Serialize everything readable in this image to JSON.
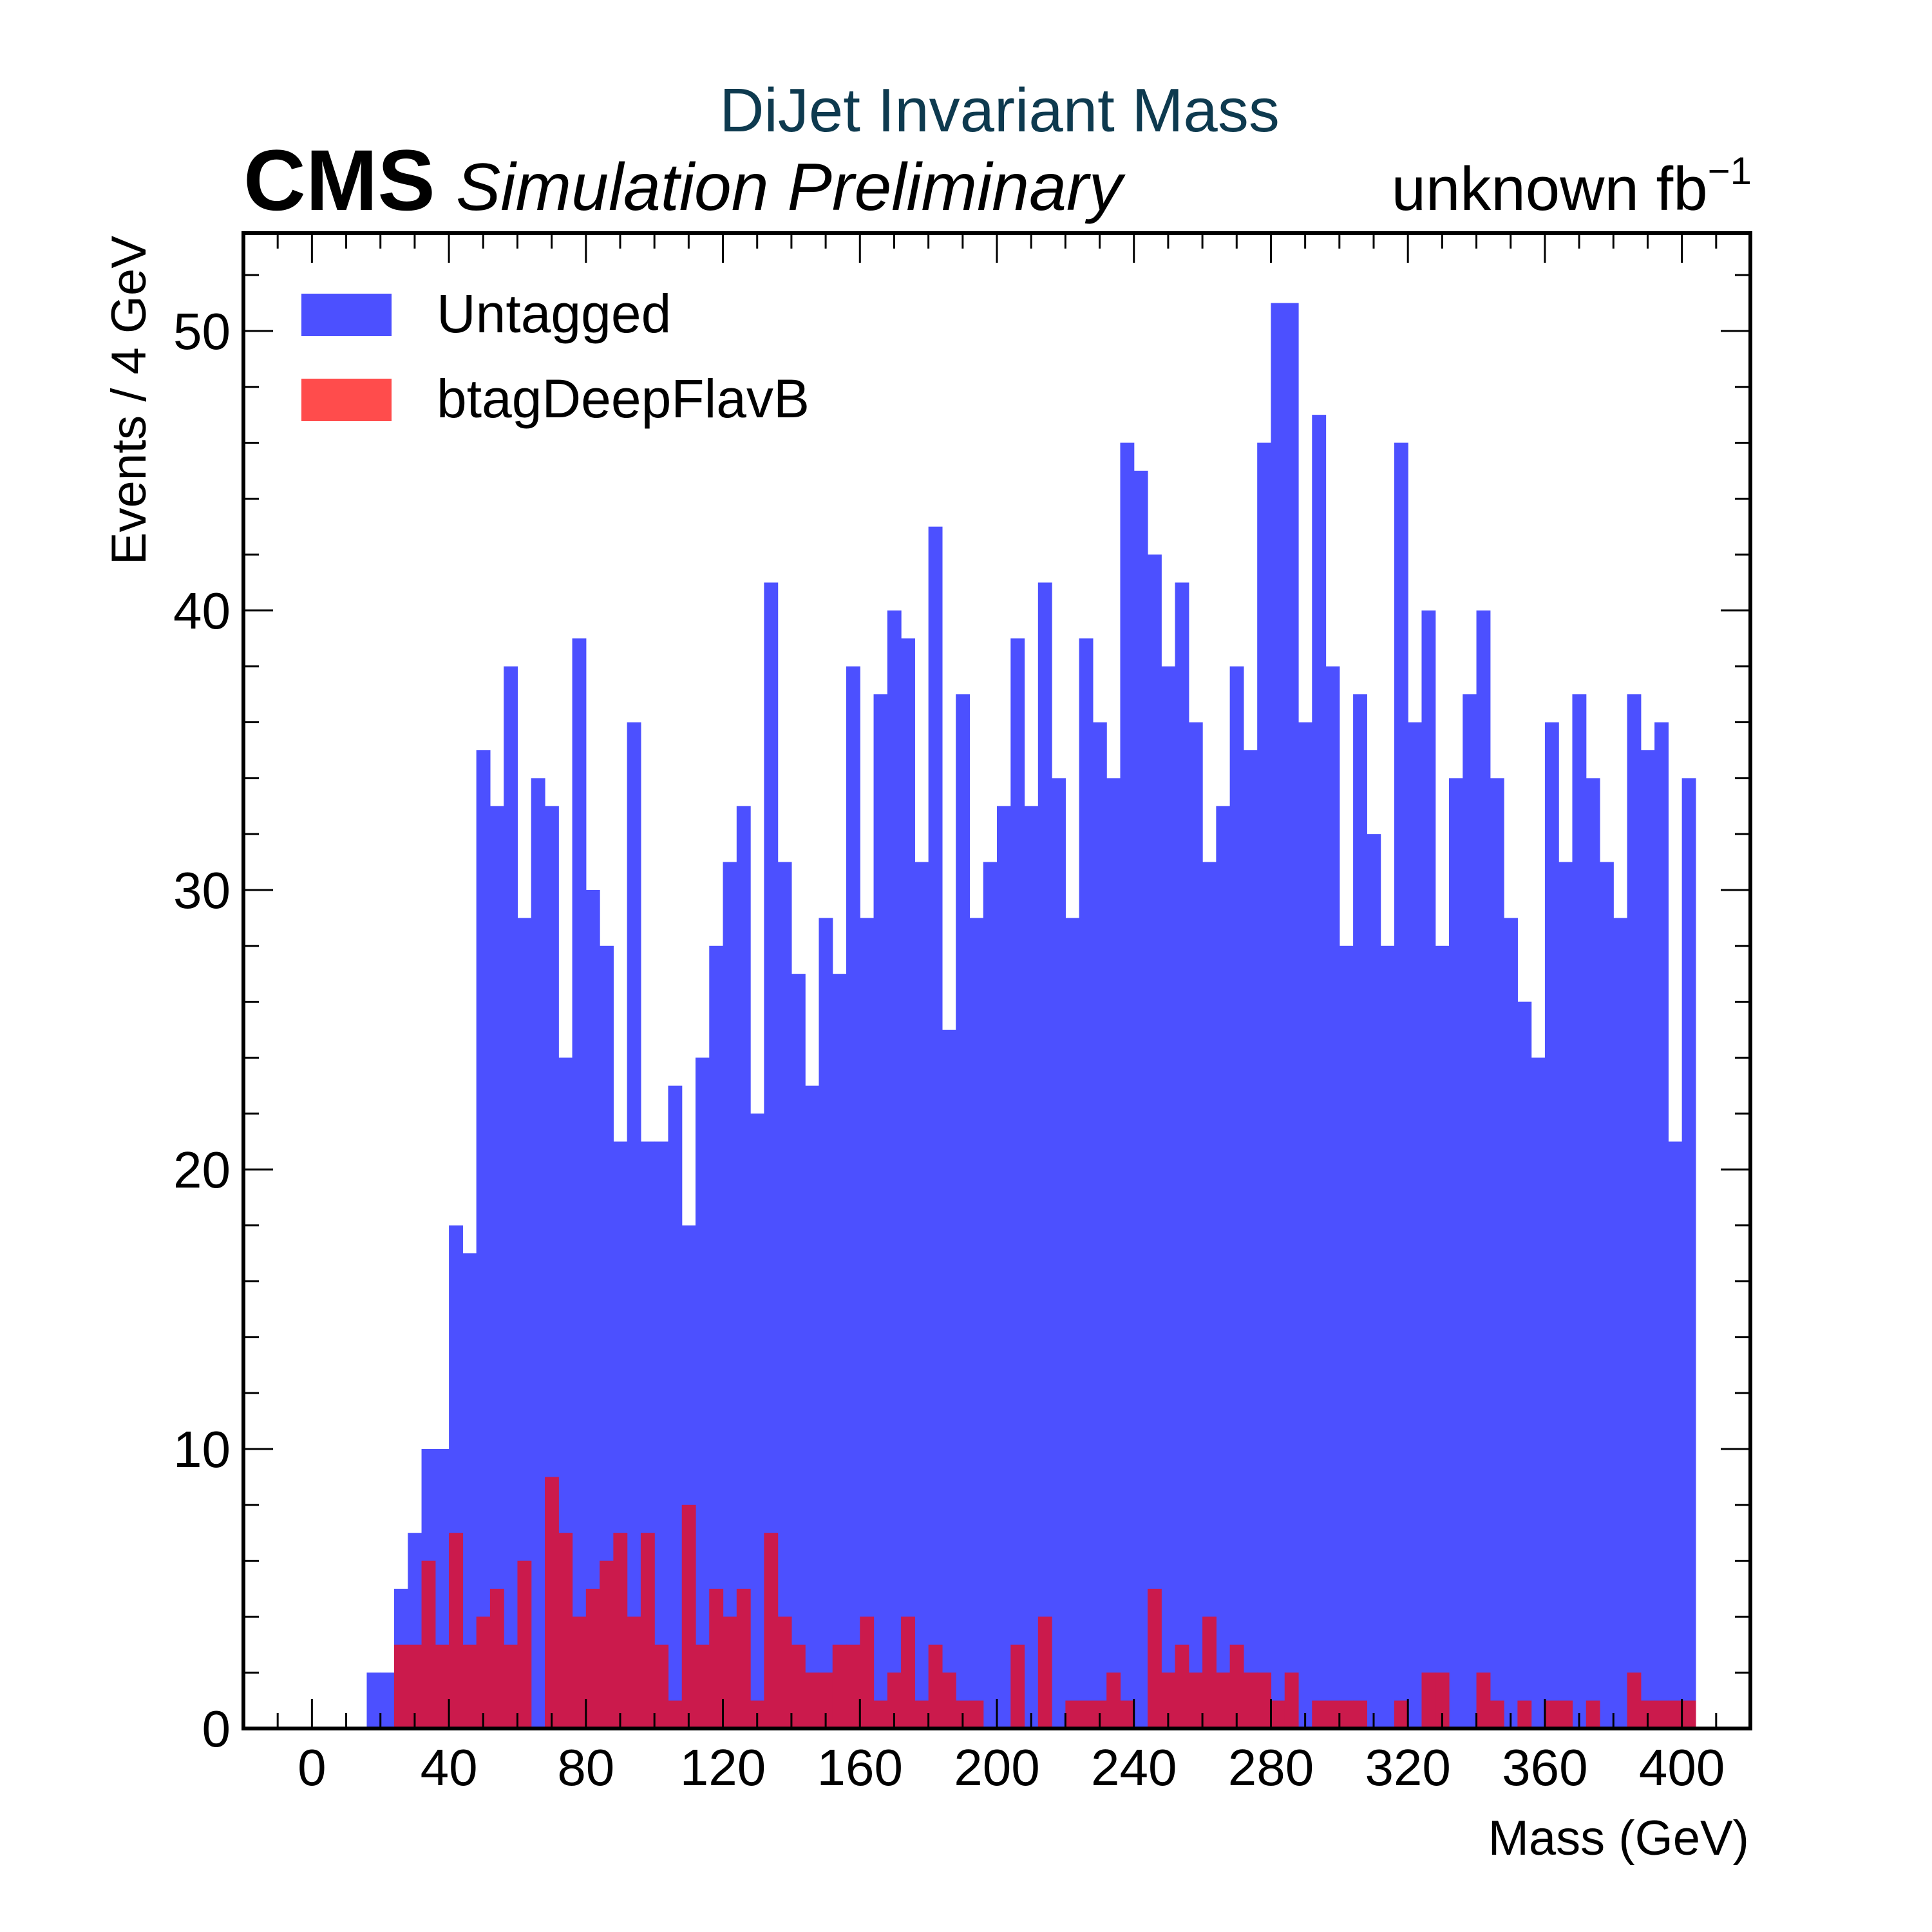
{
  "header": {
    "title": "DiJet Invariant Mass",
    "experiment": "CMS",
    "status": "Simulation Preliminary",
    "lumi_text": "unknown fb",
    "lumi_exp": "−1"
  },
  "colors": {
    "title": "#0e3a4f",
    "untagged": "#4c50ff",
    "btag": "#ff4c4c",
    "overlap": "#cb1a4c"
  },
  "chart_data": {
    "type": "bar",
    "bin_width": 4,
    "bin_start": 0,
    "xlabel": "Mass (GeV)",
    "ylabel": "Events / 4 GeV",
    "xlim": [
      -20,
      420
    ],
    "ylim": [
      0,
      53.5
    ],
    "x_ticks": [
      "0",
      "40",
      "80",
      "120",
      "160",
      "200",
      "240",
      "280",
      "320",
      "360",
      "400"
    ],
    "x_tick_values": [
      0,
      40,
      80,
      120,
      160,
      200,
      240,
      280,
      320,
      360,
      400
    ],
    "y_ticks": [
      "0",
      "10",
      "20",
      "30",
      "40",
      "50"
    ],
    "y_tick_values": [
      0,
      10,
      20,
      30,
      40,
      50
    ],
    "legend": {
      "placement": "top-left"
    },
    "series": [
      {
        "name": "Untagged",
        "values": [
          0,
          0,
          0,
          0,
          2,
          2,
          5,
          7,
          10,
          10,
          18,
          17,
          35,
          33,
          38,
          29,
          34,
          33,
          24,
          39,
          30,
          28,
          21,
          36,
          21,
          21,
          23,
          18,
          24,
          28,
          31,
          33,
          22,
          41,
          31,
          27,
          23,
          29,
          27,
          38,
          29,
          37,
          40,
          39,
          31,
          43,
          25,
          37,
          29,
          31,
          33,
          39,
          33,
          41,
          34,
          29,
          39,
          36,
          34,
          46,
          45,
          42,
          38,
          41,
          36,
          31,
          33,
          38,
          35,
          46,
          51,
          51,
          36,
          47,
          38,
          28,
          37,
          32,
          28,
          46,
          36,
          40,
          28,
          34,
          37,
          40,
          34,
          29,
          26,
          24,
          36,
          31,
          37,
          34,
          31,
          29,
          37,
          35,
          36,
          21,
          34
        ]
      },
      {
        "name": "btagDeepFlavB",
        "values": [
          0,
          0,
          0,
          0,
          0,
          0,
          3,
          3,
          6,
          3,
          7,
          3,
          4,
          5,
          3,
          6,
          0,
          9,
          7,
          4,
          5,
          6,
          7,
          4,
          7,
          3,
          1,
          8,
          3,
          5,
          4,
          5,
          1,
          7,
          4,
          3,
          2,
          2,
          3,
          3,
          4,
          1,
          2,
          4,
          1,
          3,
          2,
          1,
          1,
          0,
          0,
          3,
          0,
          4,
          0,
          1,
          1,
          1,
          2,
          1,
          0,
          5,
          2,
          3,
          2,
          4,
          2,
          3,
          2,
          2,
          1,
          2,
          0,
          1,
          1,
          1,
          1,
          0,
          0,
          1,
          0,
          2,
          2,
          0,
          0,
          2,
          1,
          0,
          1,
          0,
          1,
          1,
          0,
          1,
          0,
          0,
          2,
          1,
          1,
          1,
          1
        ]
      }
    ]
  }
}
